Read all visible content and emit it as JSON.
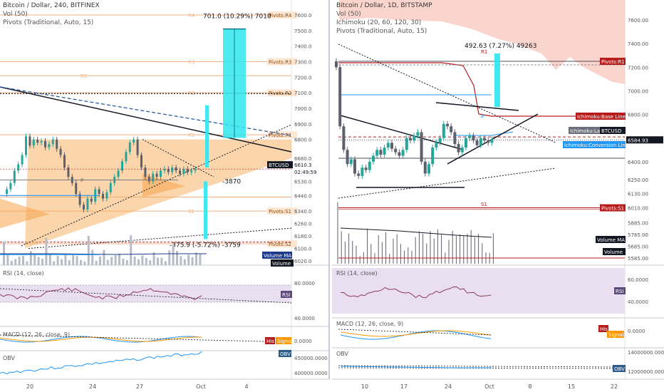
{
  "left": {
    "header": {
      "title": "Bitcoin / Dollar, 240, BITFINEX",
      "vol": "Vol (50)",
      "pivots": "Pivots (Traditional, Auto, 15)"
    },
    "y_ticks": [
      "7600.0",
      "7500.0",
      "7400.0",
      "7300.0",
      "7200.0",
      "7100.0",
      "7000.0",
      "6900.0",
      "6800.0",
      "6680.0",
      "6530.0",
      "6440.0",
      "6340.0",
      "6260.0",
      "6180.0",
      "6100.0",
      "6020.0"
    ],
    "pivot_tags": [
      "Pivots:R4",
      "Pivots:R3",
      "Pivots:R2",
      "Pivots:R1",
      "Pivots:S1",
      "Pivots:S2"
    ],
    "pivot_levels": [
      "R4",
      "R3",
      "R2",
      "R2",
      "R1",
      "P",
      "S1"
    ],
    "price_tag": "6610.3",
    "symbol_tag": "BTCUSD",
    "countdown": "02:49:59",
    "vol_ma_tag": "Volume MA",
    "volume_tag": "Volume",
    "measure_up": "701.0 (10.29%) 7010",
    "measure_down": "-375.9 (-5.72%) -3759",
    "measure_mid": "-3870",
    "rsi_label": "RSI (14, close)",
    "rsi_tag": "RSI",
    "rsi_ticks": [
      "80.0000",
      "40.0000"
    ],
    "macd_label": "MACD (12, 26, close, 9)",
    "macd_tags": [
      "His",
      "Signal"
    ],
    "macd_tick": "0.0000",
    "obv_label": "OBV",
    "obv_tag": "OBV",
    "obv_ticks": [
      "450000.0000",
      "400000.0000"
    ],
    "x_ticks": [
      "20",
      "24",
      "27",
      "Oct",
      "4"
    ]
  },
  "right": {
    "header": {
      "title": "Bitcoin / Dollar, 1D, BITSTAMP",
      "vol": "Vol (50)",
      "ichimoku": "Ichimoku (20, 60, 120, 30)",
      "pivots": "Pivots (Traditional, Auto, 15)"
    },
    "y_ticks": [
      "7600.00",
      "7400.00",
      "7200.00",
      "7000.00",
      "6800.00",
      "6584.93",
      "6400.00",
      "6250.00",
      "6130.00",
      "6010.00",
      "5885.00",
      "5785.00",
      "5685.00",
      "5585.00"
    ],
    "pivot_levels": [
      "R1",
      "P",
      "S1"
    ],
    "tags": {
      "pivots_r1": "Pivots:R1",
      "base_line": "Ichimoku:Base Line",
      "lagging": "Ichimoku:Lagg",
      "symbol": "BTCUSD",
      "conversion": "Ichimoku:Conversion Line",
      "pivots_s1": "Pivots:S1",
      "vol_ma": "Volume MA",
      "volume": "Volume"
    },
    "measure_up": "492.63 (7.27%) 49263",
    "rsi_label": "RSI (14, close)",
    "rsi_tag": "RSI",
    "rsi_ticks": [
      "60.0000",
      "40.0000"
    ],
    "macd_label": "MACD (12, 26, close, 9)",
    "macd_tags": [
      "His",
      "Signal"
    ],
    "macd_tick": "0.0000",
    "obv_label": "OBV",
    "obv_tag": "OBV",
    "obv_ticks": [
      "14000000.0000",
      "12000000.0000"
    ],
    "x_ticks": [
      "10",
      "17",
      "24",
      "Oct",
      "8",
      "15",
      "22"
    ]
  },
  "colors": {
    "up": "#26a69a",
    "down": "#5d606b",
    "rsi": "#8e3a59",
    "pivot": "#f4b183",
    "cyan": "#2ee6f0",
    "orange": "#f7a44a",
    "kumo": "#f8c7bd",
    "base": "#b71c1c",
    "conversion": "#2196f3",
    "tag_red": "#b71c1c",
    "tag_dark": "#131722",
    "tag_blue": "#2196f3",
    "tag_navy": "#1e3a8a"
  }
}
